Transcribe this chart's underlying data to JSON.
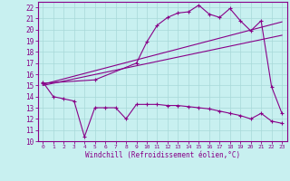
{
  "xlabel": "Windchill (Refroidissement éolien,°C)",
  "bg_color": "#c8f0f0",
  "grid_color": "#a8d8d8",
  "line_color": "#880088",
  "xlim": [
    -0.5,
    23.5
  ],
  "ylim": [
    10,
    22.5
  ],
  "xticks": [
    0,
    1,
    2,
    3,
    4,
    5,
    6,
    7,
    8,
    9,
    10,
    11,
    12,
    13,
    14,
    15,
    16,
    17,
    18,
    19,
    20,
    21,
    22,
    23
  ],
  "yticks": [
    10,
    11,
    12,
    13,
    14,
    15,
    16,
    17,
    18,
    19,
    20,
    21,
    22
  ],
  "line1_x": [
    0,
    1,
    2,
    3,
    4,
    5,
    6,
    7,
    8,
    9,
    10,
    11,
    12,
    13,
    14,
    15,
    16,
    17,
    18,
    19,
    20,
    21,
    22,
    23
  ],
  "line1_y": [
    15.3,
    14.0,
    13.8,
    13.6,
    10.4,
    13.0,
    13.0,
    13.0,
    12.0,
    13.3,
    13.3,
    13.3,
    13.2,
    13.2,
    13.1,
    13.0,
    12.9,
    12.7,
    12.5,
    12.3,
    12.0,
    12.5,
    11.8,
    11.6
  ],
  "line2_x": [
    0,
    5,
    9,
    10,
    11,
    12,
    13,
    14,
    15,
    16,
    17,
    18,
    19,
    20,
    21,
    22,
    23
  ],
  "line2_y": [
    15.2,
    15.5,
    17.0,
    18.9,
    20.4,
    21.1,
    21.5,
    21.6,
    22.2,
    21.4,
    21.1,
    21.9,
    20.8,
    19.9,
    20.8,
    14.9,
    12.5
  ],
  "line3_x": [
    0,
    23
  ],
  "line3_y": [
    15.1,
    20.7
  ],
  "line4_x": [
    0,
    23
  ],
  "line4_y": [
    15.0,
    19.5
  ],
  "marker": "+"
}
